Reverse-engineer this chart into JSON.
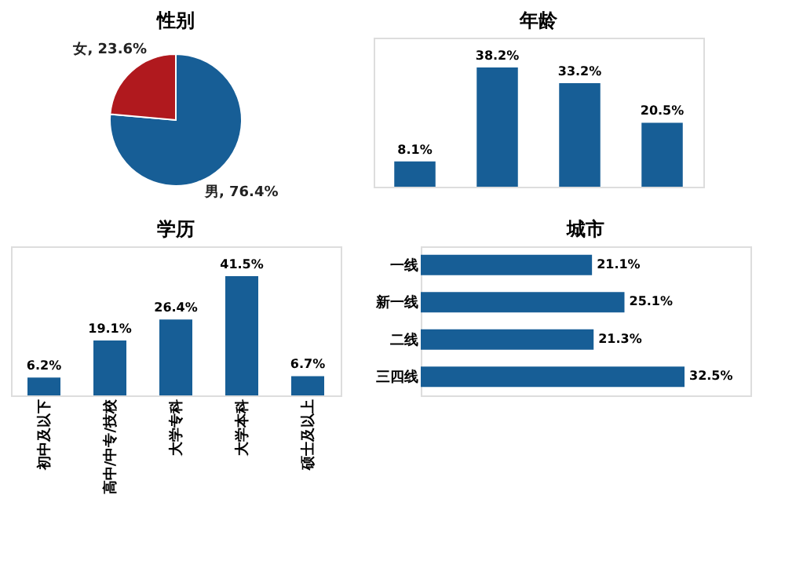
{
  "chart_data": [
    {
      "type": "pie",
      "title": "性别",
      "categories": [
        "男",
        "女"
      ],
      "values": [
        76.4,
        23.6
      ],
      "colors": [
        "#175e96",
        "#b0191e"
      ],
      "value_labels": [
        "76.4%",
        "23.6%"
      ],
      "legend": false
    },
    {
      "type": "bar",
      "title": "年龄",
      "categories": [
        null,
        null,
        null,
        null
      ],
      "values": [
        8.1,
        38.2,
        33.2,
        20.5
      ],
      "color": "#175e96",
      "value_labels": [
        "8.1%",
        "38.2%",
        "33.2%",
        "20.5%"
      ],
      "tick_labels": false,
      "grid": false
    },
    {
      "type": "bar",
      "title": "学历",
      "categories": [
        "初中及以下",
        "高中/中专/技校",
        "大学专科",
        "大学本科",
        "硕士及以上"
      ],
      "values": [
        6.2,
        19.1,
        26.4,
        41.5,
        6.7
      ],
      "color": "#175e96",
      "value_labels": [
        "6.2%",
        "19.1%",
        "26.4%",
        "41.5%",
        "6.7%"
      ],
      "tick_labels": "x",
      "grid": false
    },
    {
      "type": "bar",
      "orientation": "horizontal",
      "title": "城市",
      "categories": [
        "一线",
        "新一线",
        "二线",
        "三四线"
      ],
      "values": [
        21.1,
        25.1,
        21.3,
        32.5
      ],
      "color": "#175e96",
      "value_labels": [
        "21.1%",
        "25.1%",
        "21.3%",
        "32.5%"
      ],
      "tick_labels": "y",
      "grid": false
    }
  ]
}
